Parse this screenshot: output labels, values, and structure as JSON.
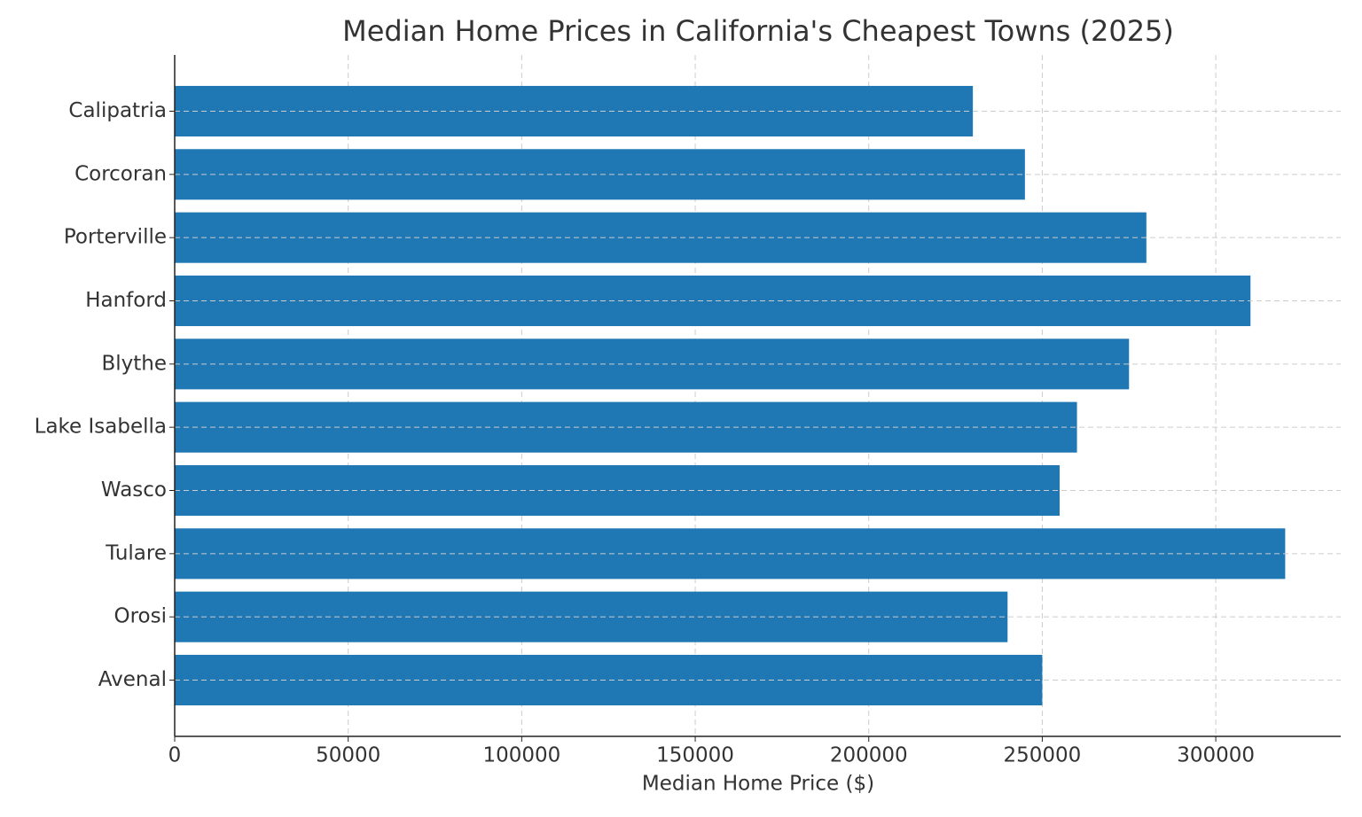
{
  "chart_data": {
    "type": "barh",
    "title": "Median Home Prices in California's Cheapest Towns (2025)",
    "x_label": "Median Home Price ($)",
    "categories": [
      "Calipatria",
      "Corcoran",
      "Porterville",
      "Hanford",
      "Blythe",
      "Lake Isabella",
      "Wasco",
      "Tulare",
      "Orosi",
      "Avenal"
    ],
    "values": [
      230000,
      245000,
      280000,
      310000,
      275000,
      260000,
      255000,
      320000,
      240000,
      250000
    ],
    "color": "#1f77b4",
    "xlim": [
      0,
      336000
    ],
    "xticks": [
      0,
      50000,
      100000,
      150000,
      200000,
      250000,
      300000
    ],
    "grid": true
  }
}
